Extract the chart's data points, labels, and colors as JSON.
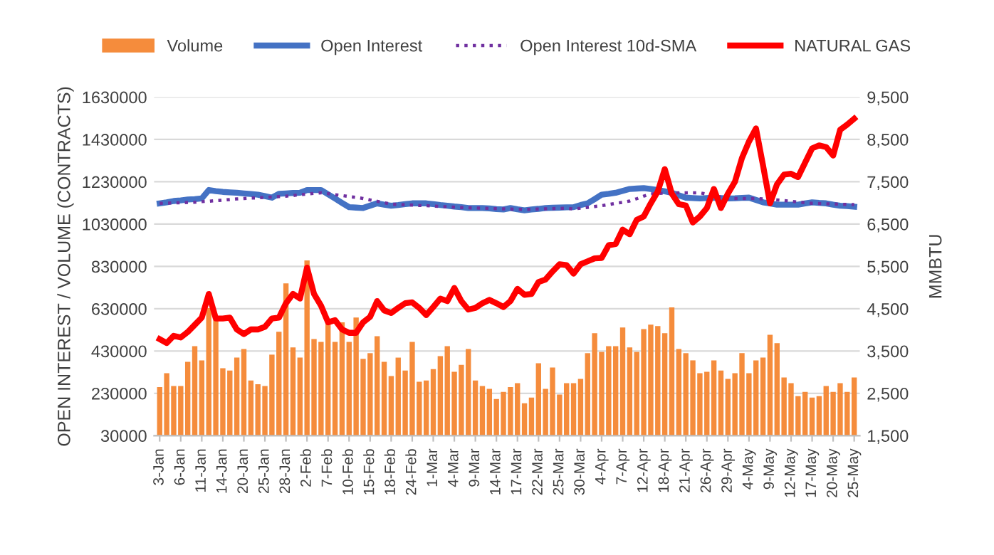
{
  "chart_data": {
    "type": "bar",
    "ylabel": "OPEN INTEREST / VOLUME (CONTRACTS)",
    "y2label": "MMBTU",
    "categories": [
      "3-Jan",
      null,
      null,
      "6-Jan",
      null,
      null,
      "11-Jan",
      null,
      null,
      "14-Jan",
      null,
      null,
      "20-Jan",
      null,
      null,
      "25-Jan",
      null,
      null,
      "28-Jan",
      null,
      null,
      "2-Feb",
      null,
      null,
      "7-Feb",
      null,
      null,
      "10-Feb",
      null,
      null,
      "15-Feb",
      null,
      null,
      "18-Feb",
      null,
      null,
      "24-Feb",
      null,
      null,
      "1-Mar",
      null,
      null,
      "4-Mar",
      null,
      null,
      "9-Mar",
      null,
      null,
      "14-Mar",
      null,
      null,
      "17-Mar",
      null,
      null,
      "22-Mar",
      null,
      null,
      "25-Mar",
      null,
      null,
      "30-Mar",
      null,
      null,
      "4-Apr",
      null,
      null,
      "7-Apr",
      null,
      null,
      "12-Apr",
      null,
      null,
      "18-Apr",
      null,
      null,
      "21-Apr",
      null,
      null,
      "26-Apr",
      null,
      null,
      "29-Apr",
      null,
      null,
      "4-May",
      null,
      null,
      "9-May",
      null,
      null,
      "12-May",
      null,
      null,
      "17-May",
      null,
      null,
      "20-May",
      null,
      null,
      "25-May"
    ],
    "series": [
      {
        "name": "Volume",
        "color": "#f58c3c",
        "values": [
          260000,
          325000,
          265000,
          265000,
          379000,
          453000,
          386000,
          633000,
          577000,
          349000,
          338000,
          399000,
          440000,
          291000,
          273000,
          265000,
          413000,
          521000,
          750000,
          447000,
          399000,
          858000,
          487000,
          473000,
          565000,
          473000,
          566000,
          473000,
          588000,
          393000,
          420000,
          500000,
          379000,
          312000,
          399000,
          338000,
          473000,
          285000,
          291000,
          345000,
          406000,
          453000,
          332000,
          365000,
          440000,
          291000,
          265000,
          251000,
          203000,
          237000,
          260000,
          278000,
          183000,
          210000,
          372000,
          251000,
          352000,
          224000,
          278000,
          278000,
          298000,
          420000,
          514000,
          426000,
          453000,
          453000,
          541000,
          447000,
          426000,
          534000,
          555000,
          548000,
          514000,
          636000,
          440000,
          420000,
          386000,
          325000,
          332000,
          386000,
          338000,
          298000,
          325000,
          420000,
          325000,
          386000,
          399000,
          507000,
          467000,
          305000,
          278000,
          217000,
          237000,
          210000,
          217000,
          265000,
          237000,
          278000,
          237000,
          305000
        ]
      },
      {
        "name": "Open Interest",
        "type": "line",
        "color": "#4472c4",
        "line_style": "solid",
        "values": [
          1128000,
          1133000,
          1139000,
          1142000,
          1146000,
          1148000,
          1151000,
          1191000,
          1186000,
          1182000,
          1180000,
          1178000,
          1175000,
          1172000,
          1169000,
          1162000,
          1155000,
          1173000,
          1175000,
          1177000,
          1178000,
          1191000,
          1191000,
          1191000,
          1171000,
          1151000,
          1130000,
          1110000,
          1108000,
          1106000,
          1117000,
          1128000,
          1122000,
          1117000,
          1120000,
          1124000,
          1128000,
          1128000,
          1128000,
          1124000,
          1120000,
          1117000,
          1113000,
          1110000,
          1106000,
          1106000,
          1106000,
          1104000,
          1101000,
          1099000,
          1106000,
          1100000,
          1095000,
          1099000,
          1102000,
          1106000,
          1107000,
          1108000,
          1109000,
          1110000,
          1120000,
          1128000,
          1148000,
          1169000,
          1173000,
          1178000,
          1187000,
          1196000,
          1198000,
          1200000,
          1196000,
          1191000,
          1185000,
          1178000,
          1166000,
          1155000,
          1153000,
          1151000,
          1153000,
          1155000,
          1153000,
          1151000,
          1152000,
          1154000,
          1155000,
          1144000,
          1133000,
          1128000,
          1122000,
          1122000,
          1122000,
          1122000,
          1128000,
          1133000,
          1130000,
          1128000,
          1122000,
          1117000,
          1115000,
          1112000
        ]
      },
      {
        "name": "Open Interest 10d-SMA",
        "type": "line",
        "color": "#7030a0",
        "line_style": "dotted",
        "values": [
          1128000,
          1129000,
          1130000,
          1131000,
          1132000,
          1133000,
          1136000,
          1138000,
          1141000,
          1143000,
          1146000,
          1149000,
          1151000,
          1153000,
          1154000,
          1156000,
          1158000,
          1160000,
          1162000,
          1165000,
          1169000,
          1172000,
          1175000,
          1178000,
          1174000,
          1169000,
          1165000,
          1160000,
          1156000,
          1151000,
          1144000,
          1138000,
          1131000,
          1124000,
          1123000,
          1121000,
          1120000,
          1118000,
          1117000,
          1115000,
          1113000,
          1112000,
          1110000,
          1108000,
          1107000,
          1106000,
          1105000,
          1104000,
          1103000,
          1102000,
          1101000,
          1100000,
          1099000,
          1100000,
          1101000,
          1102000,
          1103000,
          1104000,
          1105000,
          1101000,
          1105000,
          1109000,
          1113000,
          1117000,
          1122000,
          1128000,
          1133000,
          1139000,
          1150000,
          1162000,
          1173000,
          1175000,
          1176000,
          1178000,
          1178000,
          1178000,
          1178000,
          1178000,
          1171000,
          1165000,
          1158000,
          1151000,
          1151000,
          1151000,
          1151000,
          1151000,
          1149000,
          1146000,
          1144000,
          1141000,
          1138000,
          1134000,
          1131000,
          1128000,
          1127000,
          1126000,
          1125000,
          1124000,
          1123000,
          1122000
        ]
      },
      {
        "name": "NATURAL GAS",
        "type": "line",
        "axis": "y2",
        "color": "#ff0000",
        "line_style": "solid",
        "values": [
          3780,
          3690,
          3860,
          3820,
          3950,
          4120,
          4290,
          4850,
          4270,
          4270,
          4290,
          4010,
          3900,
          4010,
          4010,
          4070,
          4270,
          4290,
          4630,
          4850,
          4740,
          5470,
          4850,
          4570,
          4180,
          4230,
          4010,
          3930,
          3930,
          4180,
          4310,
          4680,
          4460,
          4400,
          4520,
          4630,
          4650,
          4520,
          4350,
          4540,
          4740,
          4680,
          4990,
          4680,
          4480,
          4520,
          4630,
          4710,
          4630,
          4540,
          4680,
          4970,
          4830,
          4850,
          5130,
          5190,
          5380,
          5550,
          5530,
          5330,
          5550,
          5620,
          5690,
          5700,
          6000,
          6030,
          6370,
          6260,
          6600,
          6680,
          6990,
          7270,
          7800,
          7220,
          6970,
          6940,
          6540,
          6680,
          6880,
          7330,
          6880,
          7220,
          7500,
          8060,
          8450,
          8760,
          7890,
          6990,
          7440,
          7670,
          7690,
          7610,
          7950,
          8290,
          8360,
          8320,
          8120,
          8730,
          8850,
          8990
        ]
      }
    ],
    "ylim": [
      30000,
      1630000
    ],
    "yticks": [
      30000,
      230000,
      430000,
      630000,
      830000,
      1030000,
      1230000,
      1430000,
      1630000
    ],
    "y2lim": [
      1500,
      9500
    ],
    "y2ticks": [
      {
        "value": 1500,
        "label": "1,500"
      },
      {
        "value": 2500,
        "label": "2,500"
      },
      {
        "value": 3500,
        "label": "3,500"
      },
      {
        "value": 4500,
        "label": "4,500"
      },
      {
        "value": 5500,
        "label": "5,500"
      },
      {
        "value": 6500,
        "label": "6,500"
      },
      {
        "value": 7500,
        "label": "7,500"
      },
      {
        "value": 8500,
        "label": "8,500"
      },
      {
        "value": 9500,
        "label": "9,500"
      }
    ],
    "grid": "y",
    "legend": "top"
  }
}
